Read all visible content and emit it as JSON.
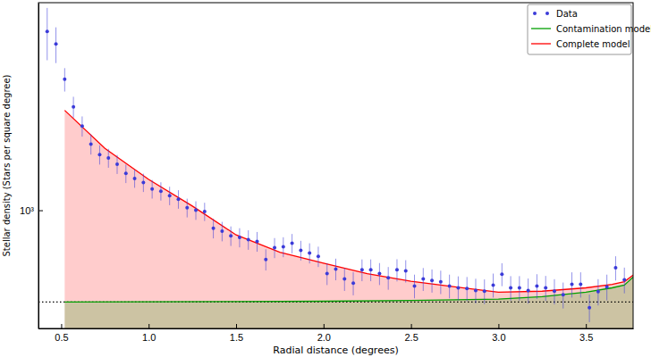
{
  "chart_data": {
    "type": "scatter",
    "x_label": "Radial distance (degrees)",
    "y_label": "Stellar density (Stars per square degree)",
    "log": "y",
    "legend": "upper right",
    "xlim": [
      0.37,
      3.77
    ],
    "xticks": [
      0.5,
      {
        "value": 1.0,
        "label": "1.0"
      },
      1.5,
      {
        "value": 2.0,
        "label": "2.0"
      },
      2.5,
      {
        "value": 3.0,
        "label": "3.0"
      },
      3.5
    ],
    "ylim": [
      400,
      5000
    ],
    "yticks": [
      {
        "value": 1000,
        "label": "10³"
      }
    ],
    "background_level": 491,
    "series": [
      {
        "name": "Data",
        "type": "scatter",
        "marker": "circle",
        "color": "#3b3bd9",
        "x": [
          0.42,
          0.47,
          0.52,
          0.57,
          0.62,
          0.67,
          0.72,
          0.77,
          0.82,
          0.87,
          0.92,
          0.97,
          1.02,
          1.07,
          1.12,
          1.17,
          1.22,
          1.27,
          1.32,
          1.37,
          1.42,
          1.47,
          1.52,
          1.57,
          1.62,
          1.67,
          1.72,
          1.77,
          1.82,
          1.87,
          1.92,
          1.97,
          2.02,
          2.07,
          2.12,
          2.17,
          2.22,
          2.27,
          2.32,
          2.37,
          2.42,
          2.47,
          2.52,
          2.57,
          2.62,
          2.67,
          2.72,
          2.77,
          2.82,
          2.87,
          2.92,
          2.97,
          3.02,
          3.07,
          3.12,
          3.17,
          3.22,
          3.27,
          3.32,
          3.37,
          3.42,
          3.47,
          3.52,
          3.57,
          3.62,
          3.67,
          3.72
        ],
        "values": [
          4000,
          3630,
          2760,
          2230,
          1920,
          1670,
          1540,
          1500,
          1430,
          1330,
          1280,
          1240,
          1180,
          1160,
          1120,
          1090,
          1020,
          1000,
          990,
          870,
          850,
          820,
          810,
          796,
          785,
          683,
          748,
          753,
          774,
          733,
          718,
          699,
          612,
          634,
          587,
          568,
          630,
          630,
          612,
          592,
          630,
          625,
          556,
          587,
          580,
          574,
          556,
          548,
          545,
          537,
          534,
          560,
          609,
          548,
          548,
          537,
          556,
          548,
          534,
          519,
          563,
          563,
          470,
          532,
          552,
          640,
          583
        ],
        "errors": [
          800,
          500,
          250,
          180,
          150,
          130,
          115,
          110,
          105,
          95,
          90,
          88,
          85,
          82,
          80,
          78,
          74,
          72,
          70,
          66,
          64,
          62,
          60,
          60,
          60,
          56,
          58,
          58,
          58,
          56,
          56,
          55,
          52,
          53,
          52,
          51,
          53,
          53,
          52,
          52,
          54,
          54,
          51,
          52,
          52,
          52,
          51,
          51,
          51,
          51,
          51,
          52,
          54,
          52,
          52,
          52,
          53,
          53,
          52,
          52,
          55,
          55,
          50,
          54,
          55,
          60,
          58
        ]
      },
      {
        "name": "Contamination model",
        "type": "area",
        "line_style": "solid",
        "color": "#00a000",
        "x": [
          0.52,
          1.0,
          1.5,
          2.0,
          2.5,
          3.0,
          3.25,
          3.5,
          3.65,
          3.72,
          3.77
        ],
        "values": [
          491,
          492,
          493,
          494,
          497,
          502,
          512,
          530,
          548,
          560,
          596
        ]
      },
      {
        "name": "Complete model",
        "type": "area",
        "line_style": "solid",
        "color": "#ff0000",
        "x": [
          0.52,
          0.75,
          1.0,
          1.25,
          1.5,
          1.75,
          2.0,
          2.25,
          2.5,
          2.75,
          3.0,
          3.25,
          3.5,
          3.65,
          3.72,
          3.77
        ],
        "values": [
          2170,
          1615,
          1270,
          1033,
          826,
          722,
          664,
          612,
          577,
          552,
          530,
          534,
          548,
          563,
          575,
          605
        ]
      }
    ]
  }
}
